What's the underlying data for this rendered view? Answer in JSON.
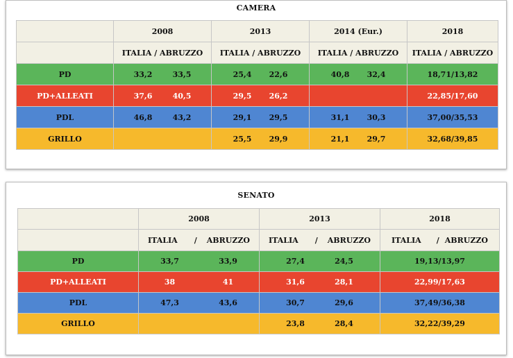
{
  "camera": {
    "title": "CAMERA",
    "years": [
      "2008",
      "2013",
      "2014 (Eur.)",
      "2018"
    ],
    "subheader": "ITALIA / ABRUZZO",
    "rows": [
      {
        "party": "PD",
        "v2008": [
          "33,2",
          "33,5"
        ],
        "v2013": [
          "25,4",
          "22,6"
        ],
        "v2014": [
          "40,8",
          "32,4"
        ],
        "v2018": "18,71/13,82"
      },
      {
        "party": "PD+ALLEATI",
        "v2008": [
          "37,6",
          "40,5"
        ],
        "v2013": [
          "29,5",
          "26,2"
        ],
        "v2014": [
          "",
          ""
        ],
        "v2018": "22,85/17,60"
      },
      {
        "party": "PDL",
        "v2008": [
          "46,8",
          "43,2"
        ],
        "v2013": [
          "29,1",
          "29,5"
        ],
        "v2014": [
          "31,1",
          "30,3"
        ],
        "v2018": "37,00/35,53"
      },
      {
        "party": "GRILLO",
        "v2008": [
          "",
          ""
        ],
        "v2013": [
          "25,5",
          "29,9"
        ],
        "v2014": [
          "21,1",
          "29,7"
        ],
        "v2018": "32,68/39,85"
      }
    ]
  },
  "senato": {
    "title": "SENATO",
    "years": [
      "2008",
      "2013",
      "2018"
    ],
    "sub_italia": "ITALIA",
    "sub_slash": "/",
    "sub_abruzzo": "ABRUZZO",
    "rows": [
      {
        "party": "PD",
        "v2008": [
          "33,7",
          "33,9"
        ],
        "v2013": [
          "27,4",
          "24,5"
        ],
        "v2018": "19,13/13,97"
      },
      {
        "party": "PD+ALLEATI",
        "v2008": [
          "38",
          "41"
        ],
        "v2013": [
          "31,6",
          "28,1"
        ],
        "v2018": "22,99/17,63"
      },
      {
        "party": "PDL",
        "v2008": [
          "47,3",
          "43,6"
        ],
        "v2013": [
          "30,7",
          "29,6"
        ],
        "v2018": "37,49/36,38"
      },
      {
        "party": "GRILLO",
        "v2008": [
          "",
          ""
        ],
        "v2013": [
          "23,8",
          "28,4"
        ],
        "v2018": "32,22/39,29"
      }
    ]
  },
  "colors": {
    "header_bg": "#f2f0e4",
    "pd": "#5bb55a",
    "pd_alleati": "#e8452f",
    "pdl": "#4f86d2",
    "grillo": "#f6b92c"
  }
}
